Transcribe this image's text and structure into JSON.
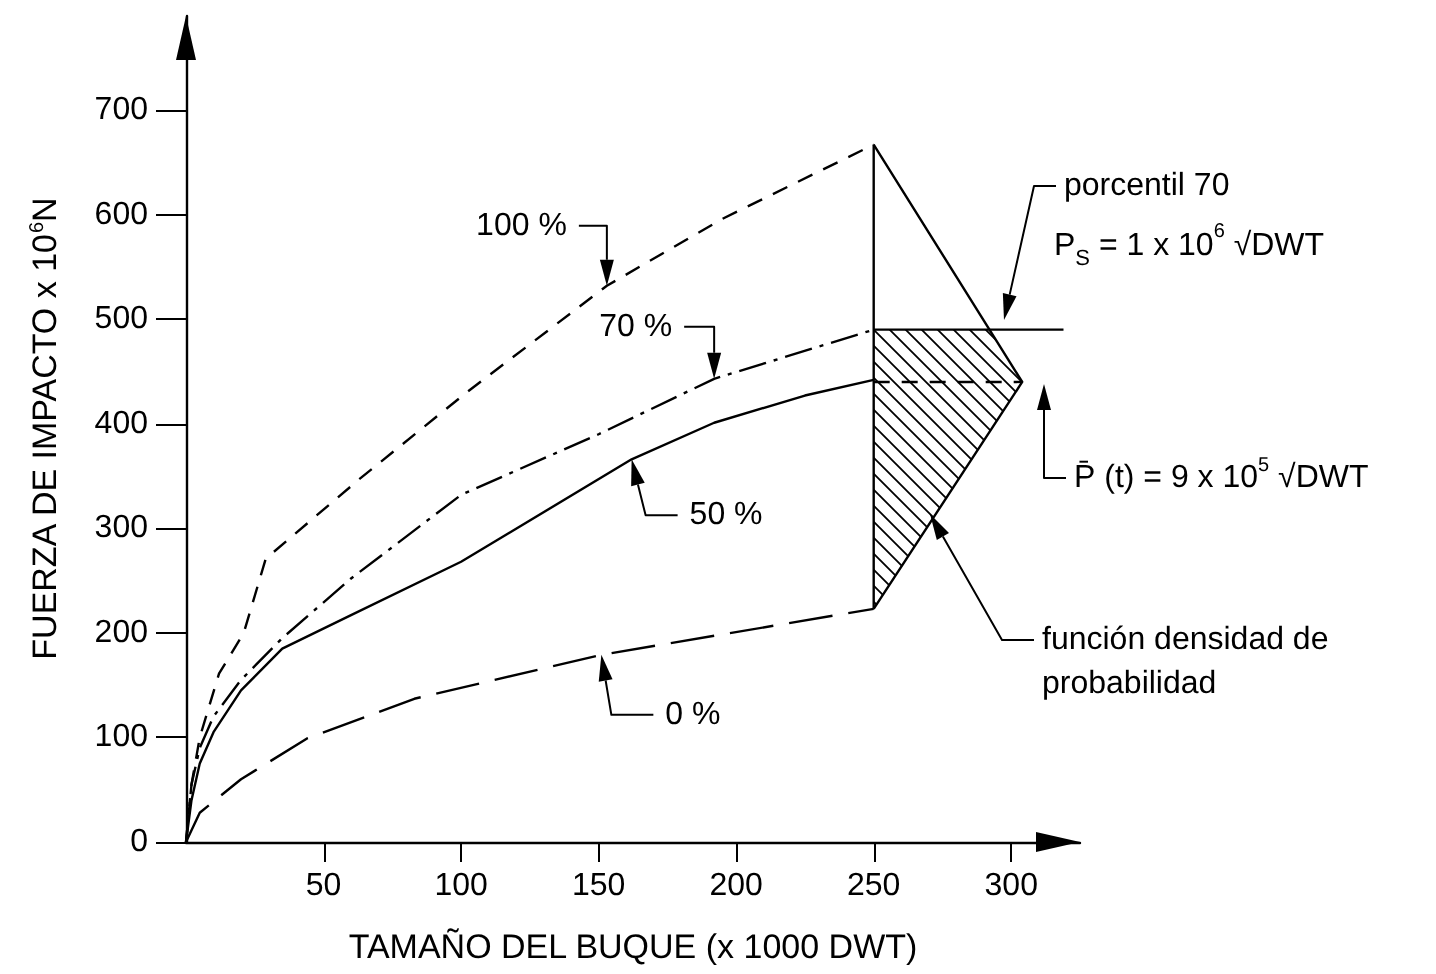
{
  "chart_data": {
    "type": "line",
    "xlabel": "TAMAÑO DEL BUQUE (x 1000 DWT)",
    "ylabel": "FUERZA DE IMPACTO x 10$^{6}$N",
    "xlim": [
      0,
      325
    ],
    "xticks": [
      50,
      100,
      150,
      200,
      250,
      300
    ],
    "ylim": [
      0,
      790
    ],
    "yticks": [
      0,
      100,
      200,
      300,
      400,
      500,
      600,
      700
    ],
    "grid": false,
    "marker": "none",
    "series": [
      {
        "color": "#000000",
        "line_style": "dashed",
        "x": [
          0,
          2,
          5,
          12,
          21,
          29,
          63,
          102,
          153,
          195,
          250
        ],
        "values": [
          0,
          55,
          100,
          161,
          200,
          271,
          347,
          430,
          532,
          596,
          667
        ]
      },
      {
        "color": "#000000",
        "line_style": "dashdot",
        "x": [
          0,
          2,
          5,
          10,
          20,
          35,
          60,
          100,
          150,
          192,
          250
        ],
        "values": [
          0,
          55,
          90,
          120,
          155,
          195,
          252,
          332,
          390,
          443,
          490
        ]
      },
      {
        "color": "#000000",
        "line_style": "solid",
        "x": [
          0,
          2,
          5,
          10,
          20,
          35,
          60,
          100,
          162,
          192,
          225,
          250
        ],
        "values": [
          0,
          40,
          75,
          105,
          145,
          185,
          217,
          268,
          366,
          401,
          427,
          442
        ]
      },
      {
        "color": "#000000",
        "line_style": "longdash",
        "x": [
          0,
          5,
          20,
          44,
          83,
          151,
          250
        ],
        "values": [
          0,
          28,
          60,
          99,
          137,
          179,
          223
        ]
      },
      {
        "color": "#000000",
        "line_style": "solid",
        "x": [
          250,
          250
        ],
        "values": [
          223,
          667
        ]
      },
      {
        "color": "#000000",
        "line_style": "solid",
        "x": [
          250,
          304,
          250
        ],
        "values": [
          667,
          440,
          223
        ]
      },
      {
        "color": "#000000",
        "line_style": "solid",
        "x": [
          250,
          319
        ],
        "values": [
          490,
          490
        ]
      },
      {
        "color": "#000000",
        "line_style": "dashed",
        "x": [
          250,
          304
        ],
        "values": [
          440,
          440
        ]
      }
    ],
    "annotations": [
      {
        "text": "100 %",
        "x": 153,
        "y": 532
      },
      {
        "text": "70 %",
        "x": 192,
        "y": 443
      },
      {
        "text": "50 %",
        "x": 162,
        "y": 366
      },
      {
        "text": "0 %",
        "x": 151,
        "y": 179
      },
      "porcentil 70",
      "P$_{S}$ = 1 x 10$^{6}$ √DWT",
      "P̄ (t) = 9 x 10$^{5}$ √DWT",
      "función densidad de probabilidad"
    ]
  }
}
